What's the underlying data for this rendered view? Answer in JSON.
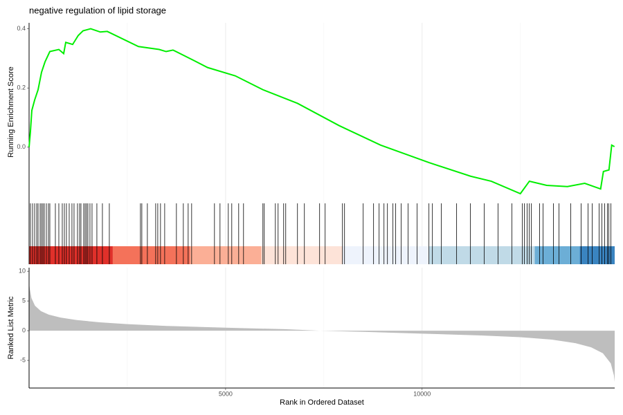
{
  "chart_data": [
    {
      "type": "line",
      "title": "negative regulation of lipid storage",
      "y_label": "Running Enrichment Score",
      "color": "#00ee00",
      "x": [
        0,
        35,
        70,
        141,
        229,
        317,
        405,
        528,
        757,
        880,
        933,
        1109,
        1250,
        1373,
        1567,
        1813,
        1989,
        2782,
        3310,
        3486,
        3662,
        4190,
        4542,
        5246,
        5951,
        6831,
        7887,
        8944,
        10176,
        11232,
        11761,
        12500,
        12729,
        13169,
        13697,
        14137,
        14542,
        14613,
        14754,
        14824,
        14894
      ],
      "values": [
        0,
        0.054,
        0.124,
        0.159,
        0.194,
        0.253,
        0.288,
        0.323,
        0.33,
        0.316,
        0.354,
        0.347,
        0.377,
        0.393,
        0.4,
        0.389,
        0.391,
        0.34,
        0.33,
        0.323,
        0.328,
        0.293,
        0.269,
        0.241,
        0.194,
        0.148,
        0.073,
        0.007,
        -0.052,
        -0.098,
        -0.115,
        -0.157,
        -0.115,
        -0.129,
        -0.133,
        -0.122,
        -0.141,
        -0.082,
        -0.077,
        0.007,
        0.002
      ],
      "xlim": [
        0,
        14900
      ],
      "ylim": [
        -0.185,
        0.42
      ],
      "yticks": [
        {
          "value": 0,
          "label": "0.0"
        },
        0.2,
        0.4
      ]
    },
    {
      "type": "rug",
      "color": "#000000",
      "x": [
        35,
        88,
        141,
        194,
        229,
        282,
        317,
        352,
        387,
        440,
        493,
        528,
        669,
        757,
        845,
        898,
        951,
        1021,
        1091,
        1144,
        1232,
        1285,
        1320,
        1390,
        1426,
        1461,
        1496,
        1549,
        1602,
        1725,
        1866,
        2042,
        2834,
        2869,
        3010,
        3221,
        3274,
        3344,
        3450,
        3749,
        3925,
        4048,
        4136,
        4717,
        4858,
        5069,
        5157,
        5333,
        5456,
        5949,
        5984,
        6266,
        6336,
        6477,
        6530,
        6829,
        7005,
        7392,
        7533,
        7973,
        8026,
        8501,
        8765,
        8906,
        9030,
        9118,
        9258,
        9328,
        9469,
        9645,
        9874,
        10174,
        10262,
        10490,
        10878,
        11230,
        11582,
        11933,
        12285,
        12549,
        12602,
        12672,
        12725,
        12778,
        12989,
        13077,
        13341,
        13482,
        13781,
        14045,
        14221,
        14326,
        14502,
        14573,
        14643,
        14714,
        14749,
        14802
      ],
      "xlim": [
        0,
        14900
      ],
      "band_edges": [
        0,
        2130,
        4101,
        5914,
        7973,
        10174,
        12866,
        14010,
        14900
      ],
      "band_colors": [
        "#e0302a",
        "#f4725a",
        "#fbaf96",
        "#fde3d8",
        "#eef3fc",
        "#c0dae7",
        "#6caed6",
        "#3a84c0"
      ]
    },
    {
      "type": "area",
      "x_label": "Rank in Ordered Dataset",
      "y_label": "Ranked List Metric",
      "color": "#bebebe",
      "x": [
        0,
        20,
        60,
        150,
        300,
        500,
        800,
        1200,
        1800,
        2500,
        3500,
        5000,
        6500,
        7400,
        8500,
        10000,
        11500,
        12500,
        13300,
        13900,
        14300,
        14600,
        14800,
        14880,
        14900
      ],
      "values": [
        8,
        7,
        5.5,
        4.2,
        3.3,
        2.7,
        2.2,
        1.8,
        1.4,
        1.1,
        0.8,
        0.5,
        0.25,
        0,
        -0.2,
        -0.5,
        -0.8,
        -1.1,
        -1.5,
        -2.1,
        -2.8,
        -3.8,
        -5.5,
        -7.5,
        -8.6
      ],
      "xlim": [
        0,
        14900
      ],
      "ylim": [
        -9.65,
        10.6
      ],
      "xticks": [
        5000,
        10000
      ],
      "x_minor_grid": [
        2500,
        7500,
        12500
      ],
      "yticks": [
        -5,
        0,
        5,
        10
      ]
    }
  ]
}
